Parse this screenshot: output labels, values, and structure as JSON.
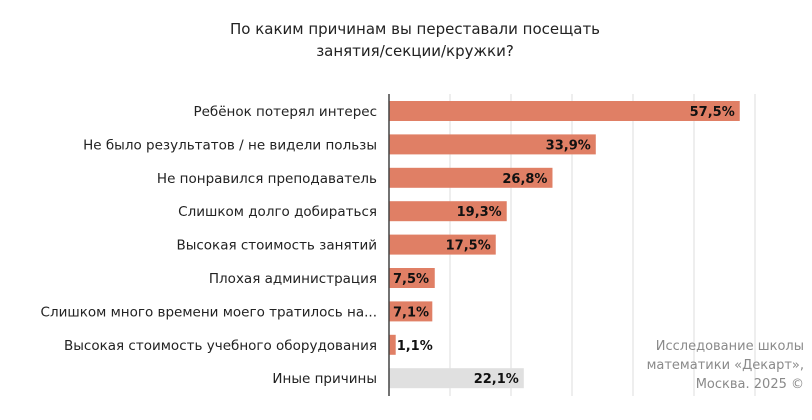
{
  "chart_data": {
    "type": "bar",
    "orientation": "horizontal",
    "title_lines": [
      "По каким причинам вы переставали посещать",
      "занятия/секции/кружки?"
    ],
    "categories": [
      "Ребёнок потерял интерес",
      "Не было результатов / не видели пользы",
      "Не понравился преподаватель",
      "Слишком долго добираться",
      "Высокая стоимость занятий",
      "Плохая администрация",
      "Слишком много времени моего тратилось на...",
      "Высокая стоимость учебного оборудования",
      "Иные причины"
    ],
    "values": [
      57.5,
      33.9,
      26.8,
      19.3,
      17.5,
      7.5,
      7.1,
      1.1,
      22.1
    ],
    "value_labels": [
      "57,5%",
      "33,9%",
      "26,8%",
      "19,3%",
      "17,5%",
      "7,5%",
      "7,1%",
      "1,1%",
      "22,1%"
    ],
    "colors": [
      "#e07f65",
      "#e07f65",
      "#e07f65",
      "#e07f65",
      "#e07f65",
      "#e07f65",
      "#e07f65",
      "#e07f65",
      "#e0e0e0"
    ],
    "xlim": [
      0,
      60
    ],
    "grid_step": 10,
    "grid": true
  },
  "footnote_lines": [
    "Исследование школы",
    "математики «Декарт»,",
    "Москва. 2025 ©"
  ]
}
